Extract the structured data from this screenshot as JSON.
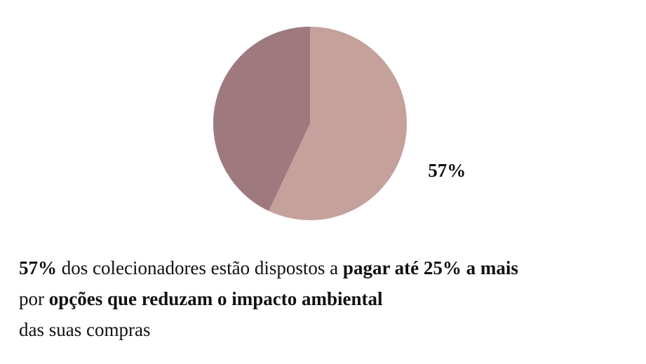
{
  "chart_data": {
    "type": "pie",
    "values": [
      57,
      43
    ],
    "value_labels": [
      "57%",
      null
    ],
    "colors": [
      "#c5a19c",
      "#9e7a7f"
    ],
    "start_angle": 0,
    "direction": "clockwise"
  },
  "caption": {
    "lines": [
      [
        {
          "text": "57%",
          "bold": true
        },
        {
          "text": " dos colecionadores estão dispostos a ",
          "bold": false
        },
        {
          "text": "pagar até 25% a mais",
          "bold": true
        }
      ],
      [
        {
          "text": "por ",
          "bold": false
        },
        {
          "text": "opções que reduzam o impacto ambiental",
          "bold": true
        }
      ],
      [
        {
          "text": "das suas compras",
          "bold": false
        }
      ]
    ]
  }
}
